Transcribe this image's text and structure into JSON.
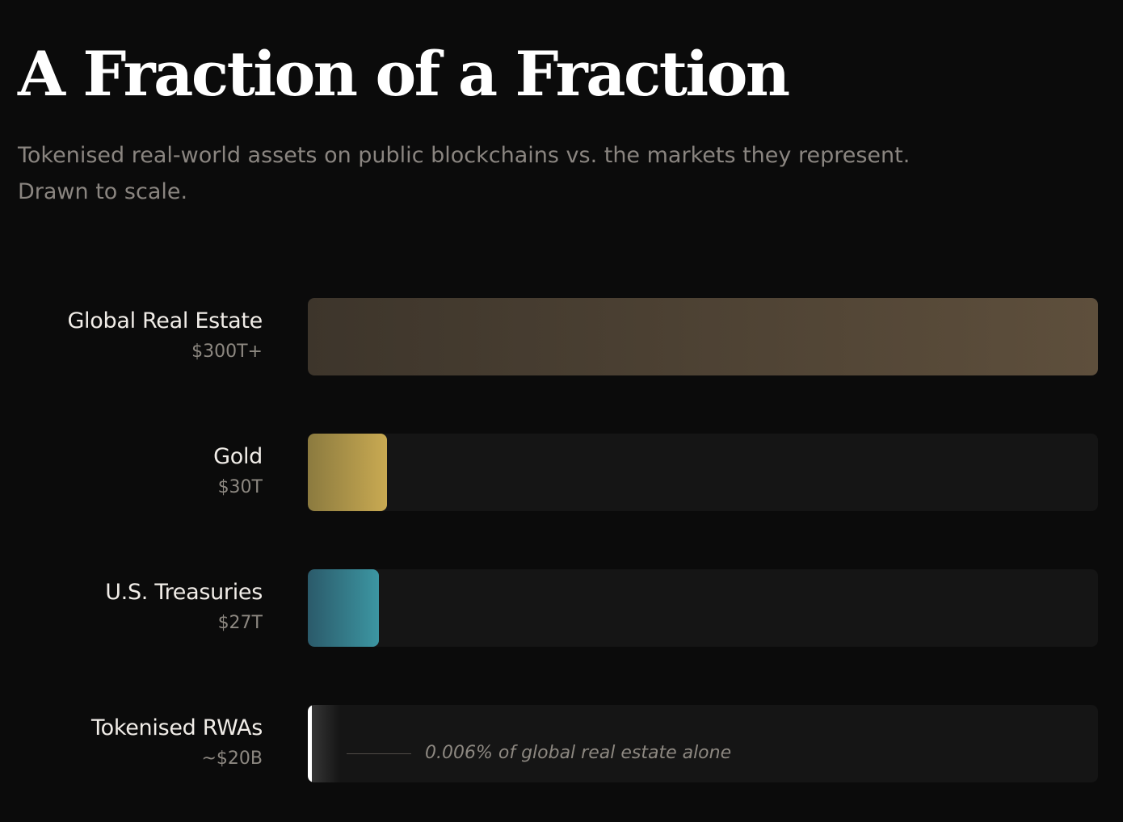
{
  "header": {
    "title": "A Fraction of a Fraction",
    "subtitle_line1": "Tokenised real-world assets on public blockchains vs. the markets they represent.",
    "subtitle_line2": "Drawn to scale."
  },
  "chart_data": {
    "type": "bar",
    "orientation": "horizontal",
    "title": "A Fraction of a Fraction",
    "unit": "USD trillions",
    "xlim": [
      0,
      300
    ],
    "grid": false,
    "legend": "none",
    "categories": [
      "Global Real Estate",
      "Gold",
      "U.S. Treasuries",
      "Tokenised RWAs"
    ],
    "values": [
      300,
      30,
      27,
      0.02
    ],
    "value_labels": [
      "$300T+",
      "$30T",
      "$27T",
      "~$20B"
    ],
    "colors": {
      "real_estate": [
        "#3d352b",
        "#5e4f3c"
      ],
      "gold": [
        "#8b7a3f",
        "#c9aa52"
      ],
      "treasuries": [
        "#2b5a6a",
        "#3c96a2"
      ],
      "rwa": [
        "#ffffff",
        "#ffffff"
      ]
    },
    "annotation": "0.006% of global real estate alone"
  }
}
